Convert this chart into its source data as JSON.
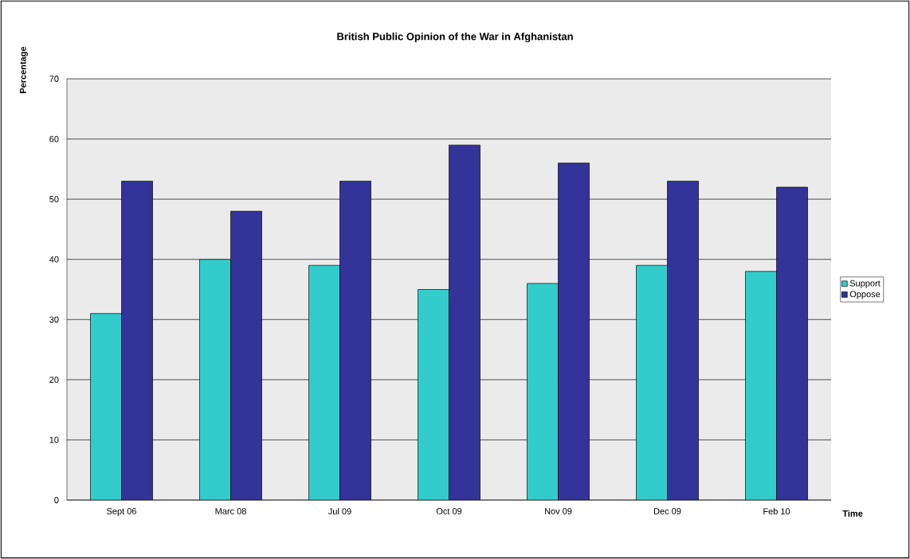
{
  "chart_data": {
    "type": "bar",
    "title": "British Public Opinion of the War in Afghanistan",
    "xlabel": "Time",
    "ylabel": "Percentage",
    "categories": [
      "Sept 06",
      "Marc 08",
      "Jul 09",
      "Oct 09",
      "Nov 09",
      "Dec 09",
      "Feb 10"
    ],
    "series": [
      {
        "name": "Support",
        "color": "#33cccc",
        "values": [
          31,
          40,
          39,
          35,
          36,
          39,
          38
        ]
      },
      {
        "name": "Oppose",
        "color": "#333399",
        "values": [
          53,
          48,
          53,
          59,
          56,
          53,
          52
        ]
      }
    ],
    "ylim": [
      0,
      70
    ],
    "yticks": [
      0,
      10,
      20,
      30,
      40,
      50,
      60,
      70
    ],
    "grid": "y",
    "legend": "right"
  }
}
